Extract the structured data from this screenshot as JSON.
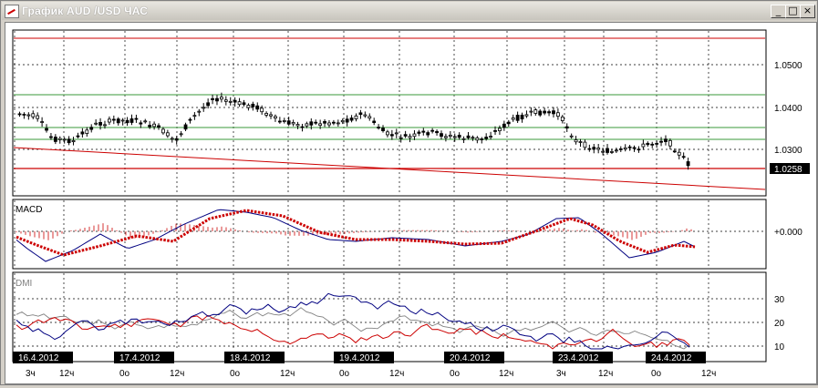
{
  "window": {
    "title": "График AUD /USD  ЧАС",
    "controls": {
      "minimize": "_",
      "maximize": "□",
      "close": "×"
    }
  },
  "price_axis": {
    "ticks": [
      "1.0500",
      "1.0400",
      "1.0300"
    ],
    "current_price": "1.0258"
  },
  "macd": {
    "label": "MACD",
    "axis_label": "+0.000"
  },
  "dmi": {
    "label": "DMI",
    "ticks": [
      "30",
      "20",
      "10"
    ]
  },
  "dates": [
    "16.4.2012",
    "17.4.2012",
    "18.4.2012",
    "19.4.2012",
    "20.4.2012",
    "23.4.2012",
    "24.4.2012"
  ],
  "time_ticks": [
    "3ч",
    "12ч",
    "0о",
    "12ч",
    "0о",
    "12ч",
    "0о",
    "12ч",
    "0о",
    "12ч",
    "3ч",
    "12ч",
    "0о",
    "12ч"
  ],
  "colors": {
    "candles": "#000000",
    "horizontal_levels_red": "#cc0000",
    "horizontal_levels_green": "#3a9a3a",
    "macd_line": "#000080",
    "macd_signal": "#cc0000",
    "dmi_plus": "#000080",
    "dmi_minus": "#cc0000",
    "adx": "#808080"
  }
}
